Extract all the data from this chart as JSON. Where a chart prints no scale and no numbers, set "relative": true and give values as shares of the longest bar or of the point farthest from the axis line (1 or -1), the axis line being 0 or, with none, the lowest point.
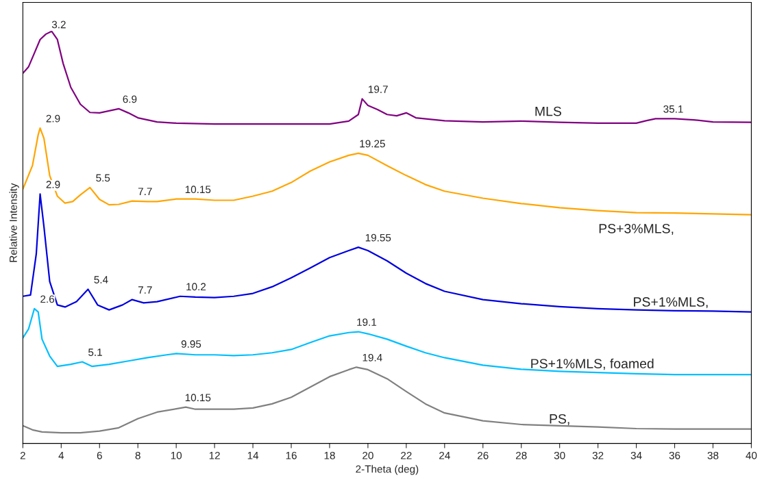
{
  "chart_data": {
    "type": "line",
    "relative": true,
    "xlabel": "2-Theta (deg)",
    "ylabel": "Relative Intensity",
    "xlim": [
      2,
      40
    ],
    "xticks": [
      2,
      4,
      6,
      8,
      10,
      12,
      14,
      16,
      18,
      20,
      22,
      24,
      26,
      28,
      30,
      32,
      34,
      36,
      38,
      40
    ],
    "grid": false,
    "legend": false,
    "marker": "none",
    "line_style": "solid",
    "series": [
      {
        "name": "MLS",
        "color": "#800080",
        "x": [
          2,
          2.3,
          2.6,
          2.9,
          3.2,
          3.5,
          3.8,
          4.1,
          4.5,
          5,
          5.5,
          6,
          6.5,
          7,
          7.5,
          8,
          9,
          10,
          12,
          14,
          16,
          18,
          19,
          19.5,
          19.7,
          20,
          20.5,
          21,
          21.5,
          22,
          22.5,
          24,
          26,
          28,
          30,
          32,
          34,
          34.5,
          35,
          36,
          37,
          38,
          40
        ],
        "values": [
          0.898,
          0.914,
          0.947,
          0.98,
          0.993,
          1.0,
          0.98,
          0.922,
          0.864,
          0.823,
          0.803,
          0.802,
          0.807,
          0.812,
          0.802,
          0.79,
          0.78,
          0.777,
          0.775,
          0.775,
          0.775,
          0.775,
          0.782,
          0.798,
          0.836,
          0.82,
          0.81,
          0.798,
          0.795,
          0.802,
          0.79,
          0.783,
          0.78,
          0.782,
          0.779,
          0.777,
          0.777,
          0.783,
          0.788,
          0.788,
          0.785,
          0.78,
          0.779
        ]
      },
      {
        "name": "PS+3%MLS,",
        "color": "#ffa500",
        "x": [
          2,
          2.5,
          2.8,
          2.9,
          3.1,
          3.4,
          3.8,
          4.2,
          4.6,
          5,
          5.5,
          6,
          6.5,
          7,
          7.7,
          8.5,
          9,
          10,
          11,
          12,
          13,
          14,
          15,
          16,
          17,
          18,
          19,
          19.5,
          20,
          21,
          22,
          23,
          24,
          26,
          28,
          30,
          32,
          34,
          36,
          38,
          40
        ],
        "values": [
          0.617,
          0.674,
          0.749,
          0.765,
          0.74,
          0.65,
          0.6,
          0.583,
          0.587,
          0.603,
          0.621,
          0.592,
          0.579,
          0.58,
          0.588,
          0.587,
          0.587,
          0.593,
          0.593,
          0.59,
          0.59,
          0.6,
          0.612,
          0.633,
          0.661,
          0.683,
          0.699,
          0.704,
          0.699,
          0.674,
          0.65,
          0.628,
          0.612,
          0.595,
          0.582,
          0.572,
          0.565,
          0.56,
          0.559,
          0.557,
          0.555
        ]
      },
      {
        "name": "PS+1%MLS,",
        "color": "#0000e0",
        "x": [
          2,
          2.4,
          2.7,
          2.9,
          3.1,
          3.4,
          3.8,
          4.2,
          4.8,
          5.4,
          5.9,
          6.5,
          7.2,
          7.7,
          8.3,
          9,
          10.2,
          11,
          12,
          13,
          14,
          15,
          16,
          17,
          18,
          19,
          19.5,
          20,
          21,
          22,
          23,
          24,
          26,
          28,
          30,
          32,
          34,
          36,
          38,
          40
        ],
        "values": [
          0.357,
          0.36,
          0.46,
          0.605,
          0.526,
          0.393,
          0.336,
          0.331,
          0.344,
          0.374,
          0.336,
          0.324,
          0.336,
          0.349,
          0.341,
          0.344,
          0.357,
          0.355,
          0.354,
          0.357,
          0.364,
          0.38,
          0.402,
          0.426,
          0.451,
          0.468,
          0.476,
          0.468,
          0.443,
          0.413,
          0.388,
          0.369,
          0.349,
          0.339,
          0.332,
          0.327,
          0.324,
          0.322,
          0.321,
          0.319
        ]
      },
      {
        "name": "PS+1%MLS, foamed",
        "color": "#00bfff",
        "x": [
          2,
          2.3,
          2.6,
          2.8,
          3.0,
          3.4,
          3.8,
          4.5,
          5.1,
          5.6,
          6.5,
          7.5,
          8.5,
          9.5,
          10,
          11,
          12,
          13,
          14,
          15,
          16,
          17,
          18,
          19,
          19.5,
          20,
          21,
          22,
          23,
          24,
          26,
          28,
          30,
          32,
          34,
          36,
          38,
          40
        ],
        "values": [
          0.256,
          0.278,
          0.327,
          0.319,
          0.253,
          0.212,
          0.187,
          0.192,
          0.198,
          0.187,
          0.192,
          0.2,
          0.208,
          0.215,
          0.218,
          0.215,
          0.215,
          0.213,
          0.215,
          0.22,
          0.228,
          0.245,
          0.261,
          0.269,
          0.271,
          0.266,
          0.253,
          0.236,
          0.22,
          0.208,
          0.19,
          0.18,
          0.175,
          0.172,
          0.169,
          0.167,
          0.167,
          0.167
        ]
      },
      {
        "name": "PS,",
        "color": "#808080",
        "x": [
          2,
          2.5,
          3,
          4,
          5,
          6,
          7,
          8,
          9,
          10,
          10.5,
          11,
          12,
          13,
          14,
          15,
          16,
          17,
          18,
          19,
          19.4,
          20,
          21,
          22,
          23,
          24,
          26,
          28,
          30,
          32,
          34,
          36,
          38,
          40
        ],
        "values": [
          0.043,
          0.033,
          0.028,
          0.026,
          0.026,
          0.03,
          0.038,
          0.06,
          0.076,
          0.084,
          0.088,
          0.083,
          0.083,
          0.083,
          0.086,
          0.096,
          0.112,
          0.137,
          0.162,
          0.179,
          0.185,
          0.179,
          0.157,
          0.126,
          0.096,
          0.074,
          0.055,
          0.046,
          0.043,
          0.04,
          0.036,
          0.035,
          0.035,
          0.035
        ]
      }
    ],
    "annotations": [
      {
        "text": "3.2",
        "x": 3.2,
        "y": 0.993
      },
      {
        "text": "6.9",
        "x": 6.9,
        "y": 0.812
      },
      {
        "text": "19.7",
        "x": 19.7,
        "y": 0.836
      },
      {
        "text": "35.1",
        "x": 35.1,
        "y": 0.788
      },
      {
        "text": "2.9",
        "x": 2.9,
        "y": 0.765
      },
      {
        "text": "5.5",
        "x": 5.5,
        "y": 0.621
      },
      {
        "text": "7.7",
        "x": 7.7,
        "y": 0.588
      },
      {
        "text": "10.15",
        "x": 10.15,
        "y": 0.593
      },
      {
        "text": "19.25",
        "x": 19.25,
        "y": 0.704
      },
      {
        "text": "2.9",
        "x": 2.9,
        "y": 0.605
      },
      {
        "text": "5.4",
        "x": 5.4,
        "y": 0.374
      },
      {
        "text": "7.7",
        "x": 7.7,
        "y": 0.349
      },
      {
        "text": "10.2",
        "x": 10.2,
        "y": 0.357
      },
      {
        "text": "19.55",
        "x": 19.55,
        "y": 0.476
      },
      {
        "text": "2.6",
        "x": 2.6,
        "y": 0.327
      },
      {
        "text": "5.1",
        "x": 5.1,
        "y": 0.198
      },
      {
        "text": "9.95",
        "x": 9.95,
        "y": 0.218
      },
      {
        "text": "19.1",
        "x": 19.1,
        "y": 0.271
      },
      {
        "text": "10.15",
        "x": 10.15,
        "y": 0.088
      },
      {
        "text": "19.4",
        "x": 19.4,
        "y": 0.185
      }
    ]
  }
}
